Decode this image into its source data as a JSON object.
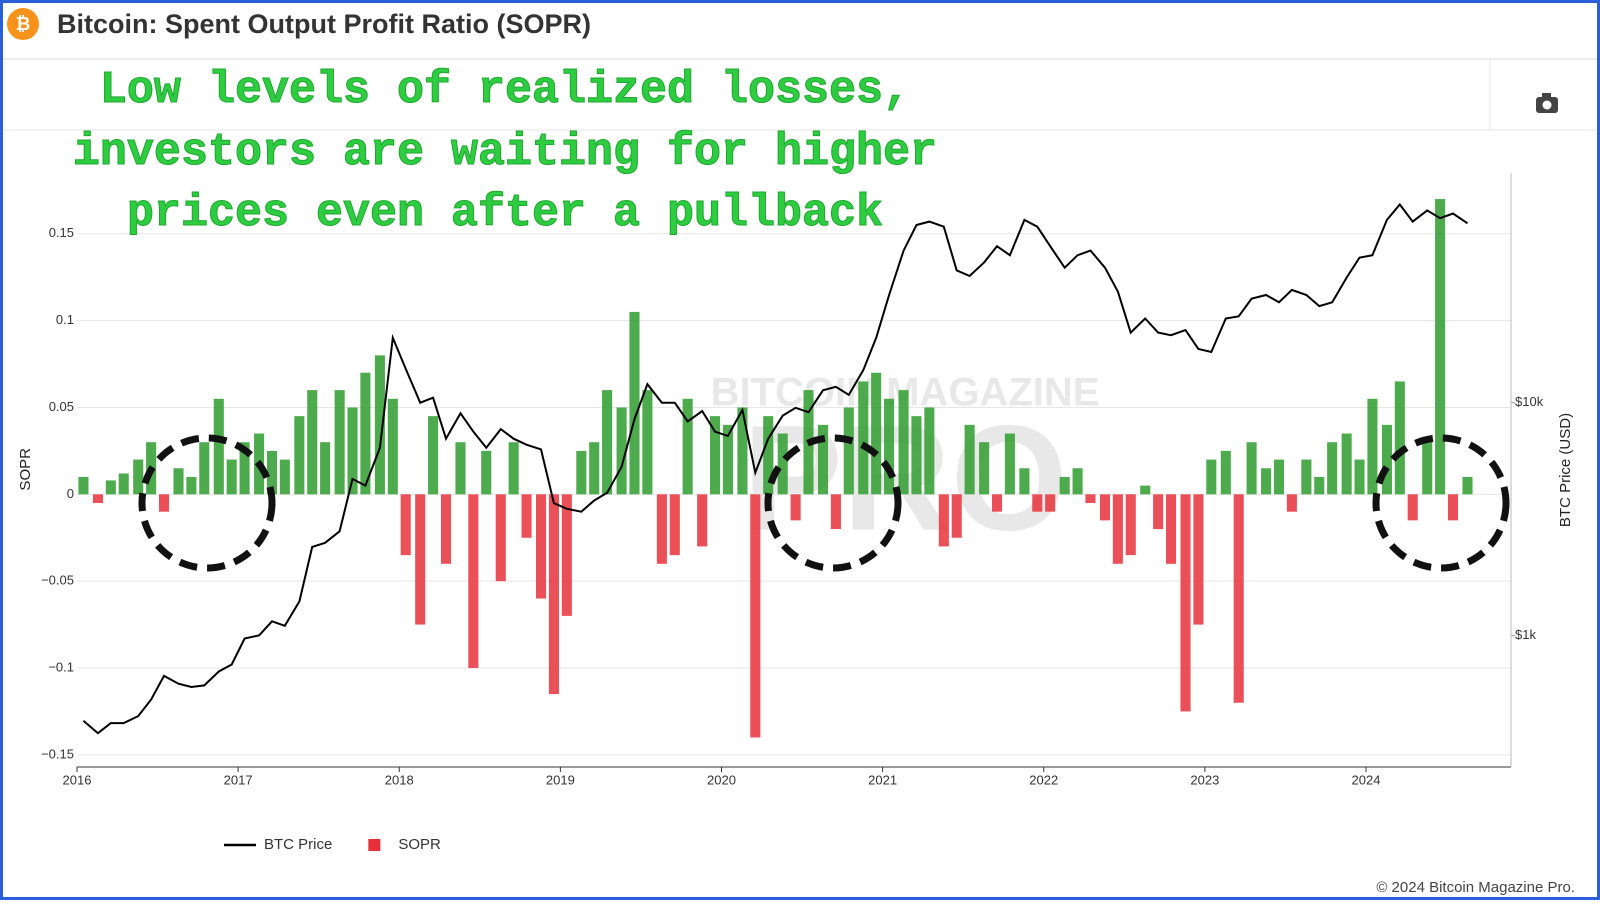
{
  "header": {
    "title": "Bitcoin: Spent Output Profit Ratio (SOPR)"
  },
  "annotation": [
    "Low levels of realized losses,",
    "investors are waiting for higher",
    "prices even after a pullback"
  ],
  "watermark": [
    "BITCOIN MAGAZINE",
    "PRO"
  ],
  "footer": "© 2024 Bitcoin Magazine Pro.",
  "chart_data": {
    "type": "combo",
    "y_label": "SOPR",
    "y2_label": "BTC Price (USD)",
    "x": [
      2016.04,
      2016.13,
      2016.21,
      2016.29,
      2016.38,
      2016.46,
      2016.54,
      2016.63,
      2016.71,
      2016.79,
      2016.88,
      2016.96,
      2017.04,
      2017.13,
      2017.21,
      2017.29,
      2017.38,
      2017.46,
      2017.54,
      2017.63,
      2017.71,
      2017.79,
      2017.88,
      2017.96,
      2018.04,
      2018.13,
      2018.21,
      2018.29,
      2018.38,
      2018.46,
      2018.54,
      2018.63,
      2018.71,
      2018.79,
      2018.88,
      2018.96,
      2019.04,
      2019.13,
      2019.21,
      2019.29,
      2019.38,
      2019.46,
      2019.54,
      2019.63,
      2019.71,
      2019.79,
      2019.88,
      2019.96,
      2020.04,
      2020.13,
      2020.21,
      2020.29,
      2020.38,
      2020.46,
      2020.54,
      2020.63,
      2020.71,
      2020.79,
      2020.88,
      2020.96,
      2021.04,
      2021.13,
      2021.21,
      2021.29,
      2021.38,
      2021.46,
      2021.54,
      2021.63,
      2021.71,
      2021.79,
      2021.88,
      2021.96,
      2022.04,
      2022.13,
      2022.21,
      2022.29,
      2022.38,
      2022.46,
      2022.54,
      2022.63,
      2022.71,
      2022.79,
      2022.88,
      2022.96,
      2023.04,
      2023.13,
      2023.21,
      2023.29,
      2023.38,
      2023.46,
      2023.54,
      2023.63,
      2023.71,
      2023.79,
      2023.88,
      2023.96,
      2024.04,
      2024.13,
      2024.21,
      2024.29,
      2024.38,
      2024.46,
      2024.54,
      2024.63
    ],
    "series": [
      {
        "name": "BTC Price",
        "type": "line",
        "axis": "y2",
        "color": "#000000",
        "values": [
          430,
          380,
          420,
          420,
          450,
          530,
          670,
          620,
          600,
          610,
          700,
          750,
          970,
          1000,
          1150,
          1100,
          1400,
          2400,
          2500,
          2800,
          4700,
          4400,
          6400,
          19000,
          14000,
          10000,
          10500,
          7000,
          9000,
          7500,
          6400,
          7700,
          7000,
          6600,
          6300,
          3700,
          3500,
          3400,
          3800,
          4100,
          5300,
          8500,
          12000,
          10000,
          10000,
          8300,
          9200,
          7500,
          7200,
          9300,
          5000,
          7000,
          8800,
          9500,
          9100,
          11300,
          11700,
          10800,
          13800,
          19000,
          29000,
          45000,
          58000,
          60000,
          57000,
          37000,
          35000,
          40000,
          47000,
          43000,
          61000,
          57000,
          47000,
          38000,
          43000,
          45000,
          38000,
          30000,
          20000,
          23000,
          20000,
          19500,
          20500,
          17000,
          16500,
          23000,
          23500,
          28000,
          29000,
          27000,
          30500,
          29000,
          26000,
          27000,
          34500,
          42000,
          43000,
          61000,
          71000,
          60000,
          67000,
          62000,
          65000,
          59000
        ]
      },
      {
        "name": "SOPR",
        "type": "bar",
        "axis": "y",
        "color": "#e8303a",
        "positive_color": "#2e9b2e",
        "values": [
          0.01,
          -0.005,
          0.008,
          0.012,
          0.02,
          0.03,
          -0.01,
          0.015,
          0.01,
          0.03,
          0.055,
          0.02,
          0.03,
          0.035,
          0.025,
          0.02,
          0.045,
          0.06,
          0.03,
          0.06,
          0.05,
          0.07,
          0.08,
          0.055,
          -0.035,
          -0.075,
          0.045,
          -0.04,
          0.03,
          -0.1,
          0.025,
          -0.05,
          0.03,
          -0.025,
          -0.06,
          -0.115,
          -0.07,
          0.025,
          0.03,
          0.06,
          0.05,
          0.105,
          0.06,
          -0.04,
          -0.035,
          0.055,
          -0.03,
          0.045,
          0.04,
          0.05,
          -0.14,
          0.045,
          0.035,
          -0.015,
          0.06,
          0.04,
          -0.02,
          0.05,
          0.065,
          0.07,
          0.055,
          0.06,
          0.045,
          0.05,
          -0.03,
          -0.025,
          0.04,
          0.03,
          -0.01,
          0.035,
          0.015,
          -0.01,
          -0.01,
          0.01,
          0.015,
          -0.005,
          -0.015,
          -0.04,
          -0.035,
          0.005,
          -0.02,
          -0.04,
          -0.125,
          -0.075,
          0.02,
          0.025,
          -0.12,
          0.03,
          0.015,
          0.02,
          -0.01,
          0.02,
          0.01,
          0.03,
          0.035,
          0.02,
          0.055,
          0.04,
          0.065,
          -0.015,
          0.03,
          0.17,
          -0.015,
          0.01
        ]
      }
    ],
    "xlim": [
      2016,
      2024.9
    ],
    "xticks": [
      2016,
      2017,
      2018,
      2019,
      2020,
      2021,
      2022,
      2023,
      2024
    ],
    "ylim": [
      -0.157,
      0.185
    ],
    "yticks": [
      0.15,
      0.1,
      0.05,
      0,
      {
        "value": -0.05,
        "label": "−0.05"
      },
      {
        "value": -0.1,
        "label": "−0.1"
      },
      {
        "value": -0.15,
        "label": "−0.15"
      }
    ],
    "y2lim": [
      272,
      97000
    ],
    "y2scale": "log",
    "y2ticks": [
      {
        "value": 1000,
        "label": "$1k"
      },
      {
        "value": 10000,
        "label": "$10k"
      }
    ],
    "grid": true,
    "legend": "bottom-left"
  }
}
